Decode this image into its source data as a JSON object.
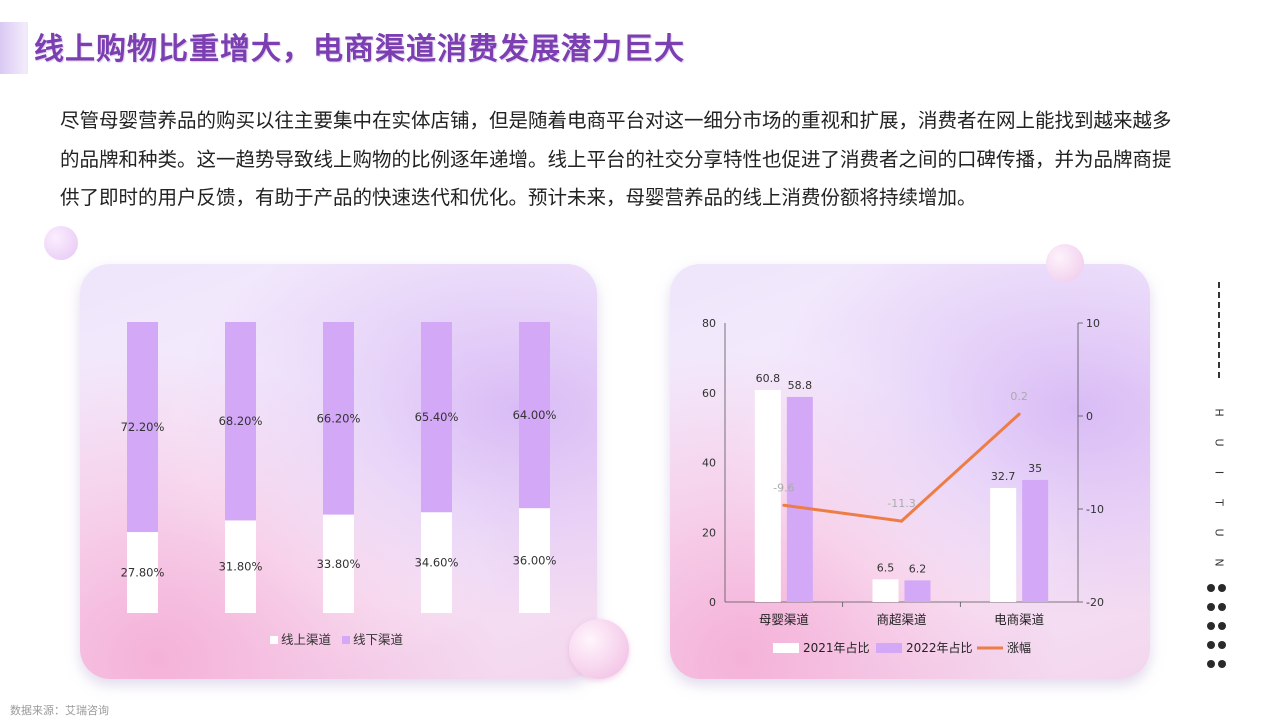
{
  "title": "线上购物比重增大，电商渠道消费发展潜力巨大",
  "paragraph": "尽管母婴营养品的购买以往主要集中在实体店铺，但是随着电商平台对这一细分市场的重视和扩展，消费者在网上能找到越来越多的品牌和种类。这一趋势导致线上购物的比例逐年递增。线上平台的社交分享特性也促进了消费者之间的口碑传播，并为品牌商提供了即时的用户反馈，有助于产品的快速迭代和优化。预计未来，母婴营养品的线上消费份额将持续增加。",
  "side_letters": [
    "H",
    "U",
    "I",
    "T",
    "U",
    "N"
  ],
  "source": "数据来源：艾瑞咨询",
  "colors": {
    "white_series": "#ffffff",
    "purple_series": "#d3a8f7",
    "line": "#ee7d45",
    "title": "#7b3fb2"
  },
  "chart_data": [
    {
      "type": "bar",
      "stacked": true,
      "percent": true,
      "categories": [
        "",
        "",
        "",
        "",
        ""
      ],
      "series": [
        {
          "name": "线上渠道",
          "values": [
            27.8,
            31.8,
            33.8,
            34.6,
            36.0
          ],
          "labels": [
            "27.80%",
            "31.80%",
            "33.80%",
            "34.60%",
            "36.00%"
          ]
        },
        {
          "name": "线下渠道",
          "values": [
            72.2,
            68.2,
            66.2,
            65.4,
            64.0
          ],
          "labels": [
            "72.20%",
            "68.20%",
            "66.20%",
            "65.40%",
            "64.00%"
          ]
        }
      ],
      "legend": "bottom",
      "grid": false
    },
    {
      "type": "bar",
      "categories": [
        "母婴渠道",
        "商超渠道",
        "电商渠道"
      ],
      "series": [
        {
          "name": "2021年占比",
          "type": "bar",
          "values": [
            60.8,
            6.5,
            32.7
          ],
          "labels": [
            "60.8",
            "6.5",
            "32.7"
          ]
        },
        {
          "name": "2022年占比",
          "type": "bar",
          "values": [
            58.8,
            6.2,
            35
          ],
          "labels": [
            "58.8",
            "6.2",
            "35"
          ]
        },
        {
          "name": "涨幅",
          "type": "line",
          "axis": "right",
          "values": [
            -9.6,
            -11.3,
            0.2
          ],
          "labels": [
            "-9.6",
            "-11.3",
            "0.2"
          ]
        }
      ],
      "ylim": [
        0,
        80
      ],
      "yticks": [
        "0",
        "20",
        "40",
        "60",
        "80"
      ],
      "y2lim": [
        -20,
        10
      ],
      "y2ticks": [
        "-20",
        "-10",
        "0",
        "10"
      ],
      "legend": "bottom",
      "grid": false
    }
  ]
}
